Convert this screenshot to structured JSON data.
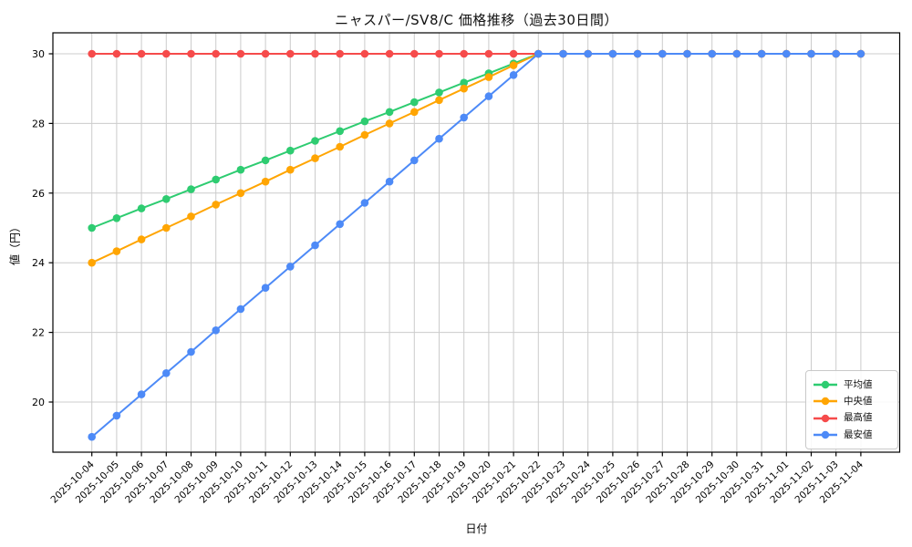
{
  "chart_data": {
    "type": "line",
    "title": "ニャスパー/SV8/C 価格推移（過去30日間）",
    "xlabel": "日付",
    "ylabel": "値（円）",
    "grid": true,
    "legend_position": "lower right",
    "ylim": [
      18.56,
      30.6
    ],
    "yticks": [
      20,
      22,
      24,
      26,
      28,
      30
    ],
    "x": [
      "2025-10-04",
      "2025-10-05",
      "2025-10-06",
      "2025-10-07",
      "2025-10-08",
      "2025-10-09",
      "2025-10-10",
      "2025-10-11",
      "2025-10-12",
      "2025-10-13",
      "2025-10-14",
      "2025-10-15",
      "2025-10-16",
      "2025-10-17",
      "2025-10-18",
      "2025-10-19",
      "2025-10-20",
      "2025-10-21",
      "2025-10-22",
      "2025-10-23",
      "2025-10-24",
      "2025-10-25",
      "2025-10-26",
      "2025-10-27",
      "2025-10-28",
      "2025-10-29",
      "2025-10-30",
      "2025-10-31",
      "2025-11-01",
      "2025-11-02",
      "2025-11-03",
      "2025-11-04"
    ],
    "series": [
      {
        "id": "average",
        "name": "平均値",
        "color": "#2ecc71",
        "values": [
          25.0,
          25.28,
          25.56,
          25.83,
          26.11,
          26.39,
          26.67,
          26.94,
          27.22,
          27.5,
          27.78,
          28.06,
          28.33,
          28.61,
          28.89,
          29.17,
          29.44,
          29.72,
          30.0,
          30.0,
          30.0,
          30.0,
          30.0,
          30.0,
          30.0,
          30.0,
          30.0,
          30.0,
          30.0,
          30.0,
          30.0,
          30.0
        ]
      },
      {
        "id": "median",
        "name": "中央値",
        "color": "#ffa502",
        "values": [
          24.0,
          24.33,
          24.67,
          25.0,
          25.33,
          25.67,
          26.0,
          26.33,
          26.67,
          27.0,
          27.33,
          27.67,
          28.0,
          28.33,
          28.67,
          29.0,
          29.33,
          29.67,
          30.0,
          30.0,
          30.0,
          30.0,
          30.0,
          30.0,
          30.0,
          30.0,
          30.0,
          30.0,
          30.0,
          30.0,
          30.0,
          30.0
        ]
      },
      {
        "id": "max",
        "name": "最高値",
        "color": "#f64b4b",
        "values": [
          30.0,
          30.0,
          30.0,
          30.0,
          30.0,
          30.0,
          30.0,
          30.0,
          30.0,
          30.0,
          30.0,
          30.0,
          30.0,
          30.0,
          30.0,
          30.0,
          30.0,
          30.0,
          30.0,
          30.0,
          30.0,
          30.0,
          30.0,
          30.0,
          30.0,
          30.0,
          30.0,
          30.0,
          30.0,
          30.0,
          30.0,
          30.0
        ]
      },
      {
        "id": "min",
        "name": "最安値",
        "color": "#4d8af7",
        "values": [
          19.0,
          19.61,
          20.22,
          20.83,
          21.44,
          22.06,
          22.67,
          23.28,
          23.89,
          24.5,
          25.11,
          25.72,
          26.33,
          26.94,
          27.56,
          28.17,
          28.78,
          29.39,
          30.0,
          30.0,
          30.0,
          30.0,
          30.0,
          30.0,
          30.0,
          30.0,
          30.0,
          30.0,
          30.0,
          30.0,
          30.0,
          30.0
        ]
      }
    ],
    "style": {
      "grid_color": "#cccccc",
      "spine_color": "#000000",
      "background": "#ffffff",
      "marker_radius": 4.3,
      "line_width": 2
    }
  }
}
